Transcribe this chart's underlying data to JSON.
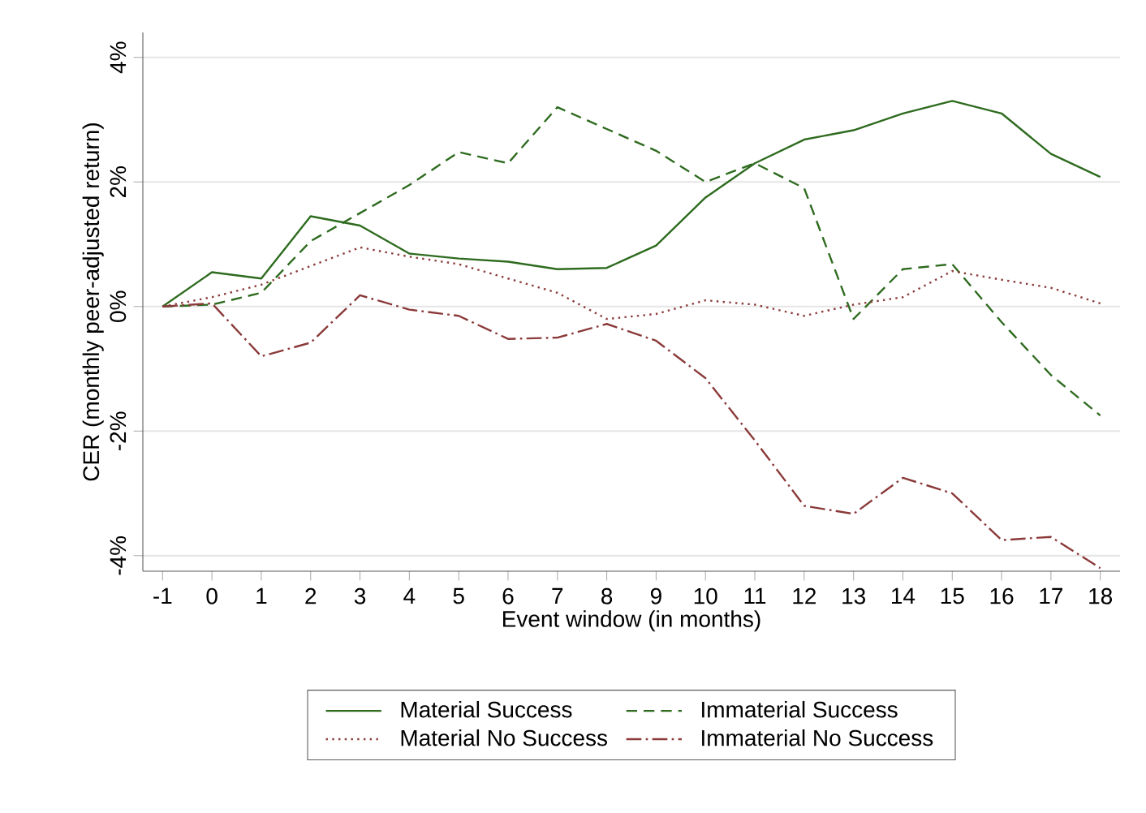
{
  "chart_data": {
    "type": "line",
    "xlabel": "Event window (in months)",
    "ylabel": "CER (monthly peer-adjusted return)",
    "x": [
      -1,
      0,
      1,
      2,
      3,
      4,
      5,
      6,
      7,
      8,
      9,
      10,
      11,
      12,
      13,
      14,
      15,
      16,
      17,
      18
    ],
    "series": [
      {
        "name": "Material Success",
        "color": "#2e6b1f",
        "line_style": "solid",
        "values": [
          0,
          0.55,
          0.45,
          1.45,
          1.3,
          0.85,
          0.77,
          0.72,
          0.6,
          0.62,
          0.98,
          1.75,
          2.3,
          2.68,
          2.83,
          3.1,
          3.3,
          3.1,
          2.45,
          2.08
        ]
      },
      {
        "name": "Immaterial Success",
        "color": "#2e6b1f",
        "line_style": "dashed",
        "values": [
          0,
          0.03,
          0.22,
          1.05,
          1.5,
          1.95,
          2.48,
          2.3,
          3.2,
          2.85,
          2.5,
          2.0,
          2.3,
          1.9,
          -0.2,
          0.6,
          0.68,
          -0.25,
          -1.1,
          -1.75
        ]
      },
      {
        "name": "Material No Success",
        "color": "#8b3a3a",
        "line_style": "dotted",
        "values": [
          0,
          0.15,
          0.35,
          0.65,
          0.95,
          0.8,
          0.68,
          0.45,
          0.22,
          -0.2,
          -0.12,
          0.1,
          0.03,
          -0.15,
          0.03,
          0.15,
          0.57,
          0.43,
          0.3,
          0.05
        ]
      },
      {
        "name": "Immaterial No Success",
        "color": "#8b3a3a",
        "line_style": "dashdot",
        "values": [
          0,
          0.05,
          -0.8,
          -0.58,
          0.18,
          -0.05,
          -0.15,
          -0.52,
          -0.5,
          -0.28,
          -0.55,
          -1.15,
          -2.15,
          -3.2,
          -3.33,
          -2.75,
          -3.0,
          -3.75,
          -3.7,
          -4.2
        ]
      }
    ],
    "xlim": [
      -1.4,
      18.4
    ],
    "ylim": [
      -4.25,
      4.4
    ],
    "xticks": [
      -1,
      0,
      1,
      2,
      3,
      4,
      5,
      6,
      7,
      8,
      9,
      10,
      11,
      12,
      13,
      14,
      15,
      16,
      17,
      18
    ],
    "yticks": [
      {
        "value": -4,
        "label": "-4%"
      },
      {
        "value": -2,
        "label": "-2%"
      },
      {
        "value": 0,
        "label": "0%"
      },
      {
        "value": 2,
        "label": "2%"
      },
      {
        "value": 4,
        "label": "4%"
      }
    ],
    "grid": "y",
    "legend": "bottom",
    "marker": "none"
  }
}
